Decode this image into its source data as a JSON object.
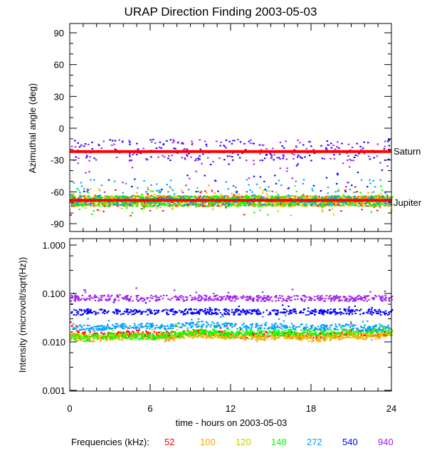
{
  "chart_data": [
    {
      "type": "scatter",
      "title": "URAP Direction Finding  2003-05-03",
      "ylabel": "Azimuthal angle (deg)",
      "xlim": [
        0,
        24
      ],
      "ylim": [
        -95,
        95
      ],
      "yticks": [
        90,
        60,
        30,
        0,
        -30,
        -60,
        -90
      ],
      "reference_lines": [
        {
          "label": "Saturn",
          "value": -22,
          "color": "#ff0000"
        },
        {
          "label": "Jupiter",
          "value": -68,
          "color": "#ff0000"
        }
      ],
      "series": [
        {
          "name": "52",
          "color": "#ff0000",
          "typical_angle": -68
        },
        {
          "name": "100",
          "color": "#ffa500",
          "typical_angle": -68
        },
        {
          "name": "120",
          "color": "#cccc00",
          "typical_angle": -68
        },
        {
          "name": "148",
          "color": "#00ff00",
          "typical_angle": -68
        },
        {
          "name": "272",
          "color": "#00a0ff",
          "typical_angle": -62
        },
        {
          "name": "540",
          "color": "#0000ff",
          "typical_angle": -20
        },
        {
          "name": "940",
          "color": "#a020f0",
          "typical_angle": -25
        }
      ]
    },
    {
      "type": "line",
      "ylabel": "Intensity (microvolt/sqrt(Hz))",
      "xlabel": "time - hours on 2003-05-03",
      "xlim": [
        0,
        24
      ],
      "xticks": [
        0,
        6,
        12,
        18,
        24
      ],
      "yscale": "log",
      "ylim": [
        0.001,
        1.0
      ],
      "yticks": [
        "1.000",
        "0.100",
        "0.010",
        "0.001"
      ],
      "series": [
        {
          "name": "52",
          "color": "#ff0000",
          "values": [
            0.016,
            0.015,
            0.014,
            0.014,
            0.015,
            0.016,
            0.015,
            0.014,
            0.015,
            0.016,
            0.016,
            0.015,
            0.014,
            0.014,
            0.014,
            0.015,
            0.015,
            0.014,
            0.014,
            0.014,
            0.015,
            0.016,
            0.016,
            0.015,
            0.016
          ]
        },
        {
          "name": "100",
          "color": "#ffa500",
          "values": [
            0.013,
            0.012,
            0.012,
            0.013,
            0.013,
            0.014,
            0.013,
            0.012,
            0.013,
            0.014,
            0.014,
            0.014,
            0.013,
            0.013,
            0.012,
            0.013,
            0.014,
            0.013,
            0.012,
            0.012,
            0.013,
            0.014,
            0.012,
            0.014,
            0.016
          ]
        },
        {
          "name": "120",
          "color": "#cccc00",
          "values": [
            0.014,
            0.013,
            0.013,
            0.013,
            0.014,
            0.014,
            0.014,
            0.014,
            0.014,
            0.015,
            0.015,
            0.014,
            0.014,
            0.014,
            0.013,
            0.014,
            0.014,
            0.014,
            0.013,
            0.013,
            0.014,
            0.015,
            0.015,
            0.015,
            0.016
          ]
        },
        {
          "name": "148",
          "color": "#00ff00",
          "values": [
            0.013,
            0.012,
            0.013,
            0.014,
            0.014,
            0.013,
            0.013,
            0.014,
            0.015,
            0.016,
            0.017,
            0.016,
            0.015,
            0.016,
            0.016,
            0.016,
            0.016,
            0.017,
            0.016,
            0.016,
            0.017,
            0.017,
            0.018,
            0.017,
            0.017
          ]
        },
        {
          "name": "272",
          "color": "#00a0ff",
          "values": [
            0.022,
            0.02,
            0.02,
            0.021,
            0.022,
            0.022,
            0.022,
            0.021,
            0.022,
            0.023,
            0.024,
            0.023,
            0.022,
            0.022,
            0.022,
            0.022,
            0.022,
            0.021,
            0.021,
            0.021,
            0.021,
            0.021,
            0.02,
            0.02,
            0.02
          ]
        },
        {
          "name": "540",
          "color": "#0000ff",
          "values": [
            0.042,
            0.043,
            0.043,
            0.044,
            0.043,
            0.043,
            0.043,
            0.043,
            0.043,
            0.044,
            0.044,
            0.043,
            0.043,
            0.043,
            0.043,
            0.043,
            0.043,
            0.043,
            0.043,
            0.043,
            0.043,
            0.043,
            0.043,
            0.043,
            0.043
          ]
        },
        {
          "name": "940",
          "color": "#a020f0",
          "values": [
            0.082,
            0.083,
            0.083,
            0.084,
            0.083,
            0.082,
            0.082,
            0.082,
            0.082,
            0.083,
            0.083,
            0.083,
            0.082,
            0.082,
            0.082,
            0.082,
            0.082,
            0.082,
            0.082,
            0.082,
            0.082,
            0.082,
            0.082,
            0.082,
            0.082
          ]
        }
      ]
    }
  ],
  "legend": {
    "label": "Frequencies (kHz):",
    "placement": "bottom"
  }
}
